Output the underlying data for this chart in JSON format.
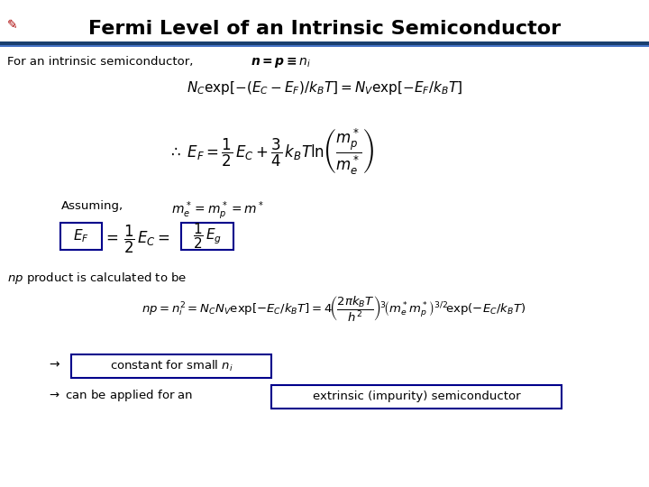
{
  "title": "Fermi Level of an Intrinsic Semiconductor",
  "title_fontsize": 16,
  "background_color": "#ffffff",
  "title_color": "#000000",
  "line_color_thick": "#1a3f6f",
  "line_color_thin": "#4472c4",
  "text_color": "#000000",
  "box_color": "#00008B",
  "line1_text": "For an intrinsic semiconductor,",
  "line1_math": "$n = p \\equiv n_i$",
  "eq1": "$N_C \\exp[-(E_C - E_F)/k_B T] = N_V \\exp[-E_F/k_B T]$",
  "eq2": "$\\therefore\\, E_F = \\dfrac{1}{2}\\,E_C + \\dfrac{3}{4}\\,k_B T \\ln\\!\\left(\\dfrac{m_p^*}{m_e^*}\\right)$",
  "assuming_prefix": "Assuming,",
  "assuming_math": "$m_e^* = m_p^* = m^*$",
  "eq3_ef": "$E_F$",
  "eq3_mid": "$=\\,\\dfrac{1}{2}\\,E_C =$",
  "eq3_eg": "$\\dfrac{1}{2}\\,E_g$",
  "np_line": "product is calculated to be",
  "eq4": "$np = n_i^2 = N_C N_V \\exp[-E_C/k_B T] = 4\\!\\left(\\dfrac{2\\pi k_B T}{h^2}\\right)^{\\!3}\\!\\left(m_e^* m_p^*\\right)^{3/2}\\!\\exp(-E_C/k_B T)$",
  "arr1_pre": "$\\rightarrow$",
  "arr1_box": "constant for small $n_i$",
  "arr2_pre": "$\\rightarrow$ can be applied for an",
  "arr2_box": "extrinsic (impurity) semiconductor"
}
